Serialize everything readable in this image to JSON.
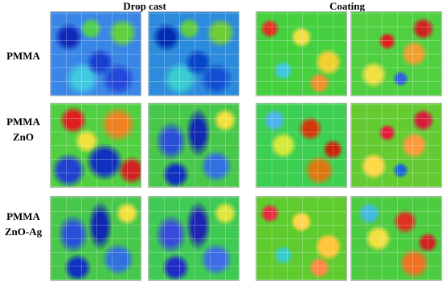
{
  "columns": [
    "Drop cast",
    "Coating"
  ],
  "row_labels": [
    [
      "PMMA"
    ],
    [
      "PMMA",
      "ZnO"
    ],
    [
      "PMMA",
      "ZnO-Ag"
    ]
  ]
}
